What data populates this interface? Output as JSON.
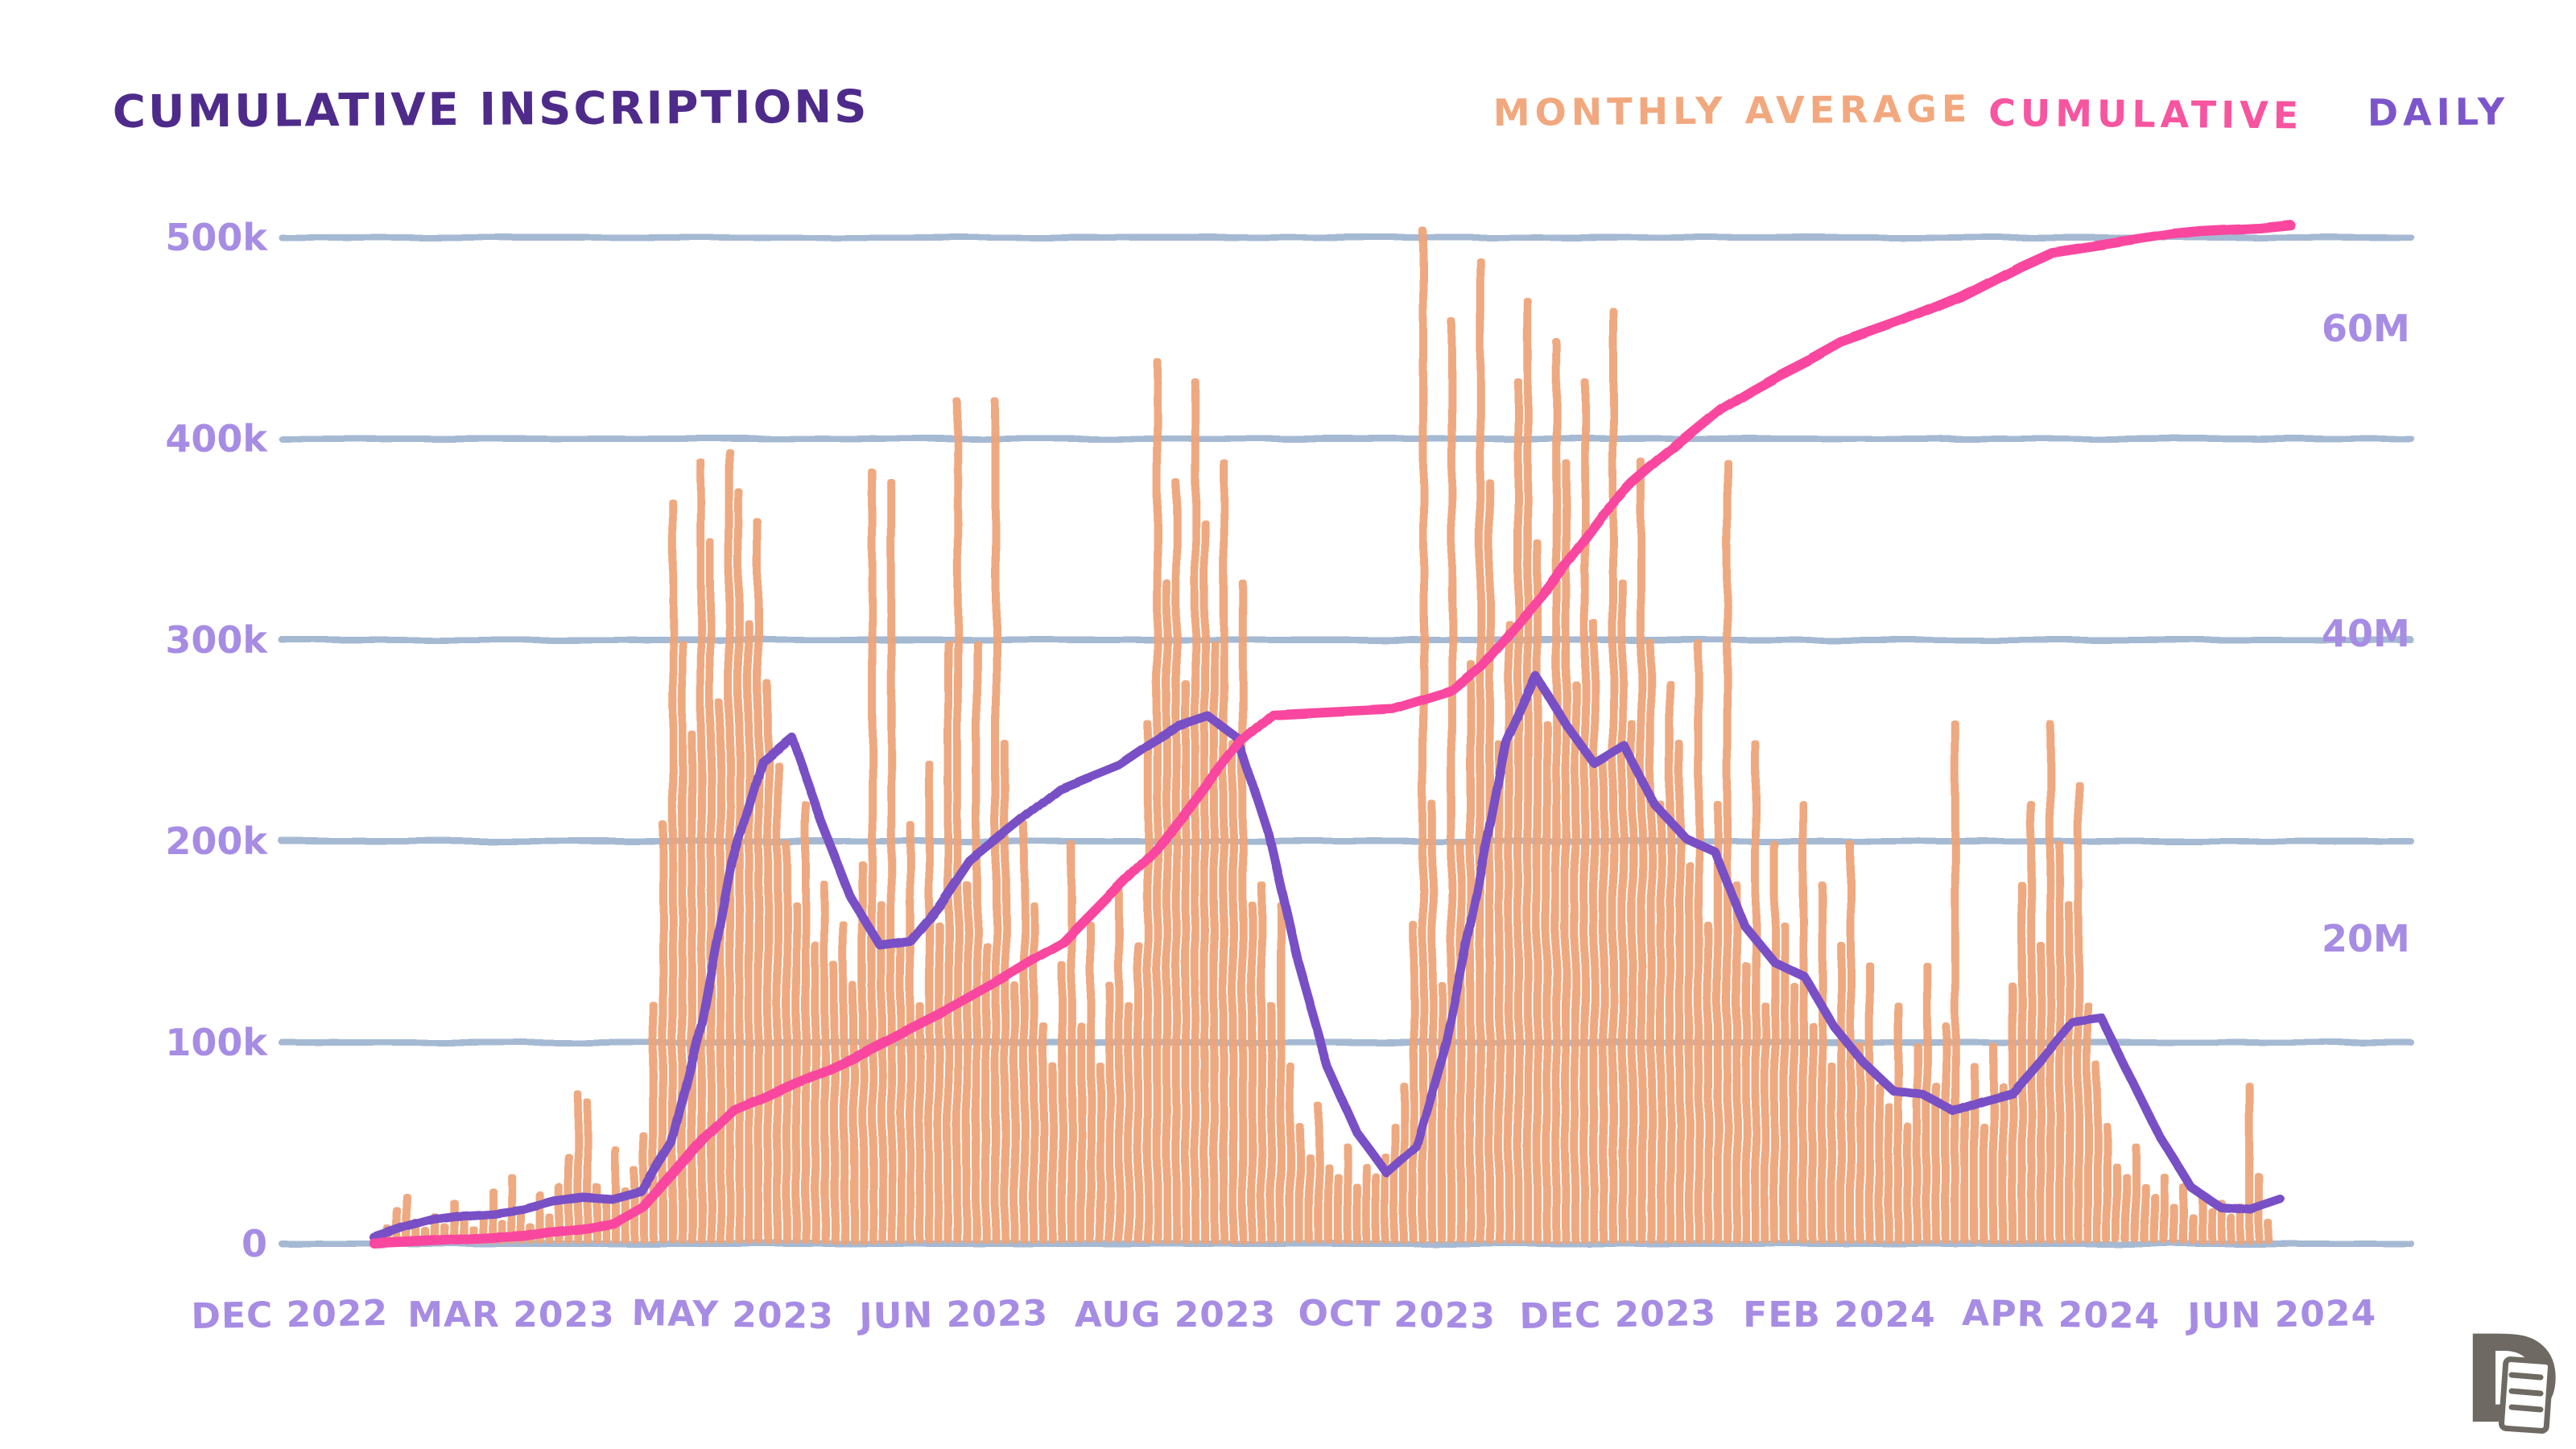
{
  "title": "CUMULATIVE INSCRIPTIONS",
  "legend": [
    {
      "label": "MONTHLY AVERAGE",
      "color": "#f2a87e",
      "series": "monthly_average"
    },
    {
      "label": "CUMULATIVE",
      "color": "#f7559f",
      "series": "cumulative"
    },
    {
      "label": "DAILY",
      "color": "#7d55cb",
      "series": "daily"
    }
  ],
  "colors": {
    "background": "#ffffff",
    "title": "#4e2b8a",
    "axis_label": "#a78ce4",
    "gridline": "#a5b9d3",
    "bar": "#eda478",
    "daily_line": "#7950c5",
    "cumulative_line": "#f9479f",
    "logo": "#6e6963"
  },
  "logo_letter": "D",
  "chart_data": {
    "type": "bar+line combo, dual axis",
    "title": "Cumulative Inscriptions",
    "x_ticks": [
      "DEC 2022",
      "MAR 2023",
      "MAY 2023",
      "JUN 2023",
      "AUG 2023",
      "OCT 2023",
      "DEC 2023",
      "FEB 2024",
      "APR 2024",
      "JUN 2024"
    ],
    "left_axis": {
      "ticks": [
        "0",
        "100k",
        "200k",
        "300k",
        "400k",
        "500k"
      ],
      "values_thousand": [
        0,
        100,
        200,
        300,
        400,
        500
      ]
    },
    "right_axis": {
      "ticks": [
        "20M",
        "40M",
        "60M"
      ],
      "values_million": [
        20,
        40,
        60
      ],
      "max_value_million": 67
    },
    "grid": true,
    "legend_position": "top-right",
    "series": [
      {
        "name": "MONTHLY AVERAGE",
        "type": "bar",
        "axis": "left",
        "unit": "thousand inscriptions (values estimated from pixels)",
        "values": [
          4,
          9,
          18,
          25,
          12,
          8,
          15,
          10,
          22,
          14,
          9,
          16,
          28,
          12,
          35,
          18,
          10,
          26,
          15,
          30,
          45,
          76,
          72,
          30,
          22,
          48,
          28,
          38,
          55,
          120,
          210,
          370,
          300,
          255,
          390,
          350,
          270,
          395,
          375,
          310,
          360,
          280,
          240,
          200,
          170,
          220,
          150,
          180,
          140,
          160,
          130,
          190,
          385,
          170,
          380,
          150,
          210,
          120,
          240,
          160,
          300,
          420,
          180,
          300,
          150,
          420,
          250,
          130,
          210,
          170,
          110,
          90,
          140,
          200,
          110,
          160,
          90,
          130,
          180,
          120,
          150,
          260,
          440,
          330,
          380,
          280,
          430,
          360,
          300,
          390,
          250,
          330,
          170,
          180,
          120,
          170,
          90,
          60,
          45,
          70,
          40,
          35,
          50,
          30,
          40,
          35,
          45,
          60,
          80,
          160,
          505,
          220,
          130,
          460,
          200,
          290,
          490,
          380,
          250,
          310,
          430,
          470,
          350,
          260,
          450,
          390,
          280,
          430,
          310,
          240,
          465,
          330,
          260,
          390,
          300,
          220,
          280,
          250,
          190,
          300,
          160,
          220,
          390,
          180,
          140,
          250,
          120,
          200,
          160,
          130,
          220,
          110,
          180,
          90,
          150,
          200,
          100,
          140,
          80,
          70,
          120,
          60,
          100,
          140,
          80,
          110,
          260,
          70,
          90,
          60,
          100,
          80,
          130,
          180,
          220,
          150,
          260,
          200,
          170,
          230,
          120,
          90,
          60,
          40,
          35,
          50,
          30,
          25,
          35,
          20,
          30,
          15,
          25,
          18,
          22,
          15,
          20,
          80,
          35,
          12
        ]
      },
      {
        "name": "DAILY",
        "type": "line",
        "axis": "left",
        "unit": "thousand inscriptions (values estimated from pixels)",
        "values": [
          3,
          8,
          12,
          14,
          15,
          17,
          21,
          23,
          22,
          26,
          50,
          110,
          190,
          240,
          252,
          210,
          172,
          148,
          150,
          168,
          190,
          202,
          214,
          226,
          232,
          238,
          248,
          257,
          262,
          251,
          205,
          140,
          88,
          55,
          35,
          48,
          100,
          172,
          250,
          282,
          258,
          238,
          247,
          218,
          202,
          195,
          158,
          140,
          133,
          108,
          90,
          76,
          74,
          66,
          71,
          75,
          92,
          110,
          112,
          82,
          52,
          28,
          18,
          17,
          22
        ]
      },
      {
        "name": "CUMULATIVE",
        "type": "line",
        "axis": "right",
        "unit": "million inscriptions (values estimated from pixels)",
        "values": [
          0,
          0.1,
          0.2,
          0.3,
          0.4,
          0.5,
          0.8,
          1.0,
          1.3,
          2.4,
          4.6,
          6.9,
          8.8,
          9.6,
          10.5,
          11.3,
          12.2,
          13.2,
          14.2,
          15.2,
          16.3,
          17.4,
          18.6,
          19.7,
          21.7,
          23.7,
          25.7,
          27.9,
          30.5,
          33.0,
          34.7,
          34.8,
          34.9,
          35.0,
          35.1,
          35.7,
          36.3,
          37.9,
          40.2,
          42.5,
          45.1,
          47.7,
          49.8,
          51.5,
          53.1,
          54.7,
          55.9,
          57.0,
          58.0,
          59.1,
          59.8,
          60.5,
          61.3,
          62.1,
          63.1,
          64.1,
          65.0,
          65.3,
          65.6,
          65.9,
          66.2,
          66.4,
          66.5,
          66.6,
          66.8
        ]
      }
    ]
  }
}
